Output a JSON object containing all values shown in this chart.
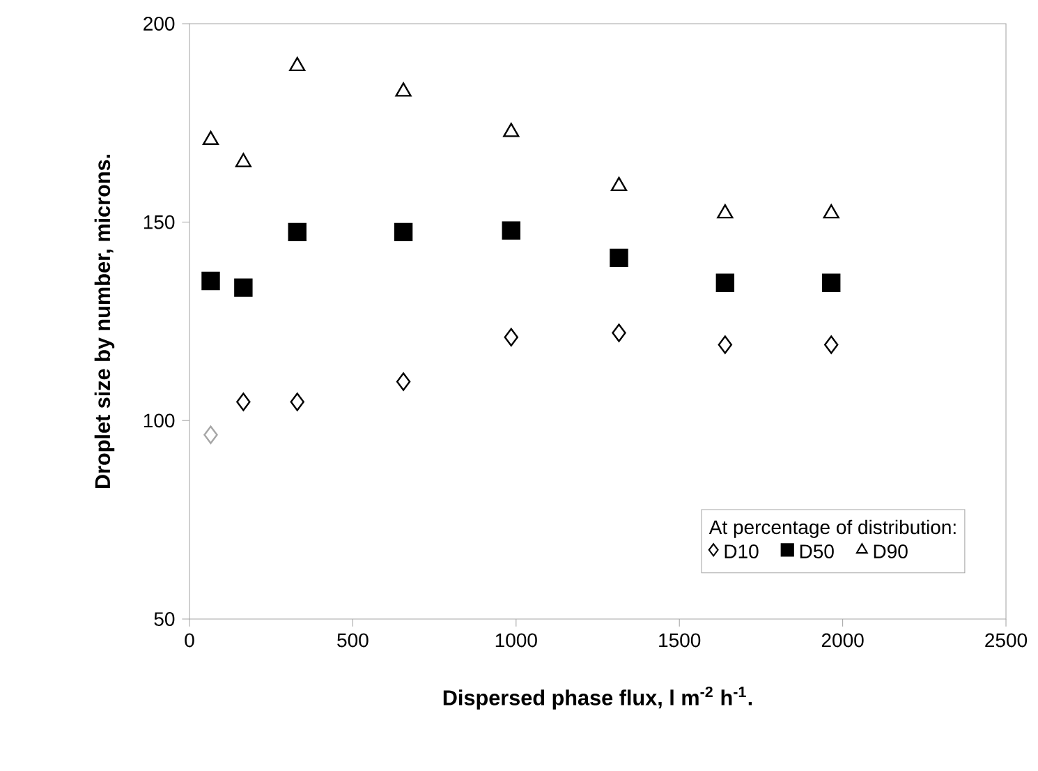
{
  "chart_data": {
    "type": "scatter",
    "xlabel": "Dispersed phase flux, l m$^{-2}$ h$^{-1}$.",
    "ylabel": "Droplet size by number, microns.",
    "legend_title": "At percentage of distribution:",
    "legend": "bottom right",
    "grid": false,
    "x": [
      65,
      165,
      330,
      655,
      985,
      1315,
      1640,
      1965
    ],
    "xlim": [
      0,
      2500
    ],
    "xticks": [
      0,
      500,
      1000,
      1500,
      2000,
      2500
    ],
    "ylim": [
      50,
      200
    ],
    "yticks": [
      50,
      100,
      150,
      200
    ],
    "series": [
      {
        "name": "D10",
        "marker": "diamond",
        "color": "#000000",
        "colors": [
          "#a6a6a6",
          "#000000",
          "#000000",
          "#000000",
          "#000000",
          "#000000",
          "#000000",
          "#000000"
        ],
        "values": [
          96.4,
          104.7,
          104.7,
          109.8,
          121.0,
          122.1,
          119.1,
          119.1
        ]
      },
      {
        "name": "D50",
        "marker": "square",
        "color": "#000000",
        "values": [
          135.2,
          133.5,
          147.5,
          147.5,
          147.9,
          141.0,
          134.7,
          134.7
        ]
      },
      {
        "name": "D90",
        "marker": "triangle",
        "color": "#000000",
        "values": [
          170.7,
          165.1,
          189.3,
          182.9,
          172.7,
          159.1,
          152.2,
          152.2
        ]
      }
    ]
  }
}
